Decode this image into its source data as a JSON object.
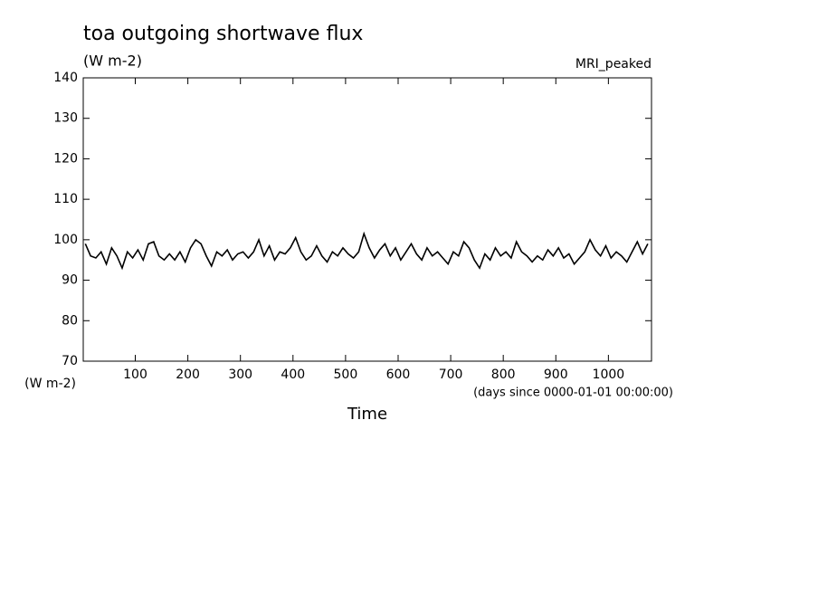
{
  "chart_data": {
    "type": "line",
    "title": "toa outgoing shortwave flux",
    "units": "(W m-2)",
    "dataset": "MRI_peaked",
    "y_axis_label": "(W m-2)",
    "x_units": "(days since 0000-01-01 00:00:00)",
    "x_axis_label": "Time",
    "xlim": [
      1,
      1082
    ],
    "xticks": [
      100,
      200,
      300,
      400,
      500,
      600,
      700,
      800,
      900,
      1000
    ],
    "ylim": [
      70,
      140
    ],
    "yticks": [
      70,
      80,
      90,
      100,
      110,
      120,
      130,
      140
    ],
    "series": [
      {
        "color": "#000000",
        "x": [
          5,
          15,
          25,
          35,
          45,
          55,
          65,
          75,
          85,
          95,
          105,
          115,
          125,
          135,
          145,
          155,
          165,
          175,
          185,
          195,
          205,
          215,
          225,
          235,
          245,
          255,
          265,
          275,
          285,
          295,
          305,
          315,
          325,
          335,
          345,
          355,
          365,
          375,
          385,
          395,
          405,
          415,
          425,
          435,
          445,
          455,
          465,
          475,
          485,
          495,
          505,
          515,
          525,
          535,
          545,
          555,
          565,
          575,
          585,
          595,
          605,
          615,
          625,
          635,
          645,
          655,
          665,
          675,
          685,
          695,
          705,
          715,
          725,
          735,
          745,
          755,
          765,
          775,
          785,
          795,
          805,
          815,
          825,
          835,
          845,
          855,
          865,
          875,
          885,
          895,
          905,
          915,
          925,
          935,
          945,
          955,
          965,
          975,
          985,
          995,
          1005,
          1015,
          1025,
          1035,
          1045,
          1055,
          1065,
          1075
        ],
        "values": [
          99,
          96,
          95.5,
          97,
          94,
          98,
          96,
          93,
          97,
          95.5,
          97.5,
          95,
          99,
          99.5,
          96,
          95,
          96.5,
          95,
          97,
          94.5,
          98,
          100,
          99,
          96,
          93.5,
          97,
          96,
          97.5,
          95,
          96.5,
          97,
          95.5,
          97,
          100,
          96,
          98.5,
          95,
          97,
          96.5,
          98,
          100.5,
          97,
          95,
          96,
          98.5,
          96,
          94.5,
          97,
          96,
          98,
          96.5,
          95.5,
          97,
          101.5,
          98,
          95.5,
          97.5,
          99,
          96,
          98,
          95,
          97,
          99,
          96.5,
          95,
          98,
          96,
          97,
          95.5,
          94,
          97,
          96,
          99.5,
          98,
          95,
          93,
          96.5,
          95,
          98,
          96,
          97,
          95.5,
          99.5,
          97,
          96,
          94.5,
          96,
          95,
          97.5,
          96,
          98,
          95.5,
          96.5,
          94,
          95.5,
          97,
          100,
          97.5,
          96,
          98.5,
          95.5,
          97,
          96,
          94.5,
          97,
          99.5,
          96.5,
          99
        ]
      }
    ]
  }
}
